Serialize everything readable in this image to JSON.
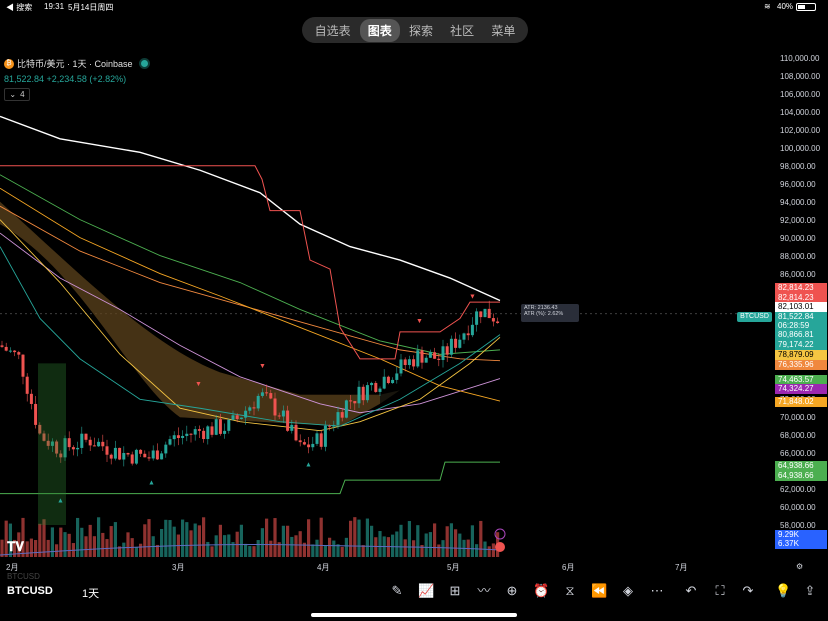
{
  "status_bar": {
    "back_label": "◀ 搜索",
    "time": "19:31",
    "date": "5月14日周四",
    "battery": "40%"
  },
  "top_nav": {
    "tabs": [
      "自选表",
      "图表",
      "探索",
      "社区",
      "菜单"
    ],
    "active": "图表"
  },
  "header": {
    "title": "比特币/美元 · 1天 · Coinbase",
    "price_line": "81,522.84  +2,234.58 (+2.82%)",
    "indicator_count": "4"
  },
  "price_axis": [
    "110,000.00",
    "108,000.00",
    "106,000.00",
    "104,000.00",
    "102,000.00",
    "100,000.00",
    "98,000.00",
    "96,000.00",
    "94,000.00",
    "92,000.00",
    "90,000.00",
    "88,000.00",
    "86,000.00",
    "84,000.00",
    "72,000.00",
    "70,000.00",
    "68,000.00",
    "66,000.00",
    "62,000.00",
    "60,000.00",
    "58,000.00"
  ],
  "price_tags": [
    {
      "text": "82,814.23",
      "color": "#ef5350"
    },
    {
      "text": "82,814.23",
      "color": "#ef5350"
    },
    {
      "text": "82,103.01",
      "color": "#ffffff"
    },
    {
      "text": "81,522.84",
      "color": "#26a69a"
    },
    {
      "text": "06:28:59",
      "color": "#26a69a"
    },
    {
      "text": "80,866.81",
      "color": "#26a69a"
    },
    {
      "text": "79,174.22",
      "color": "#26a69a"
    },
    {
      "text": "78,879.09",
      "color": "#f5c542"
    },
    {
      "text": "76,335.96",
      "color": "#f0883e"
    },
    {
      "text": "74,463.57",
      "color": "#4caf50"
    },
    {
      "text": "74,324.27",
      "color": "#9c27b0"
    },
    {
      "text": "71,848.02",
      "color": "#f5a623"
    },
    {
      "text": "64,938.66",
      "color": "#4caf50"
    },
    {
      "text": "64,938.66",
      "color": "#4caf50"
    },
    {
      "text": "9.29K",
      "color": "#2962ff"
    },
    {
      "text": "6.37K",
      "color": "#2962ff"
    }
  ],
  "symbol_flag": "BTCUSD",
  "atr": {
    "line1": "ATR: 2136.43",
    "line2": "ATR (%): 2.62%"
  },
  "time_axis": [
    "2月",
    "3月",
    "4月",
    "5月",
    "6月",
    "7月"
  ],
  "bottom_bar": {
    "symbol": "BTCUSD",
    "interval": "1天",
    "faded_symbol": "BTCUSD"
  },
  "tools": [
    "pen-icon",
    "indicators-icon",
    "layout-icon",
    "strategy-icon",
    "add-icon",
    "alert-icon",
    "replay-icon",
    "rewind-icon",
    "layers-icon",
    "more-icon",
    "undo-icon",
    "fullscreen-icon",
    "redo-icon",
    "bulb-icon",
    "share-icon"
  ],
  "colors": {
    "up": "#26a69a",
    "down": "#ef5350",
    "background": "#000000"
  },
  "chart_data": {
    "type": "candlestick",
    "symbol": "BTCUSD",
    "interval": "1D",
    "last_price": 81522.84,
    "change": 2234.58,
    "change_pct": 2.82,
    "ylim": [
      58000,
      110000
    ],
    "x_labels": [
      "2月",
      "3月",
      "4月",
      "5月",
      "6月",
      "7月"
    ],
    "candles_approx": [
      {
        "t": "2月初",
        "c": 75000
      },
      {
        "t": "2月中",
        "c": 68000
      },
      {
        "t": "3月初",
        "c": 66500
      },
      {
        "t": "3月中",
        "c": 71000
      },
      {
        "t": "4月初",
        "c": 68000
      },
      {
        "t": "4月中",
        "c": 72000
      },
      {
        "t": "5月初",
        "c": 79000
      },
      {
        "t": "5月中",
        "c": 81522.84
      }
    ],
    "lines": [
      {
        "color": "#ffffff",
        "points": [
          [
            0,
            103500
          ],
          [
            100,
            99000
          ],
          [
            200,
            96000
          ],
          [
            300,
            91000
          ],
          [
            400,
            87500
          ],
          [
            500,
            83500
          ]
        ]
      },
      {
        "color": "#ef5350",
        "points": [
          [
            0,
            98000
          ],
          [
            250,
            98000
          ],
          [
            260,
            96000
          ],
          [
            300,
            92000
          ],
          [
            330,
            82000
          ],
          [
            340,
            77000
          ],
          [
            400,
            80000
          ],
          [
            500,
            82814
          ]
        ]
      },
      {
        "color": "#4caf50",
        "points": [
          [
            0,
            62000
          ],
          [
            340,
            62000
          ],
          [
            345,
            63500
          ],
          [
            440,
            65000
          ],
          [
            500,
            65000
          ]
        ]
      }
    ],
    "volume_labels": [
      "9.29K",
      "6.37K"
    ]
  }
}
